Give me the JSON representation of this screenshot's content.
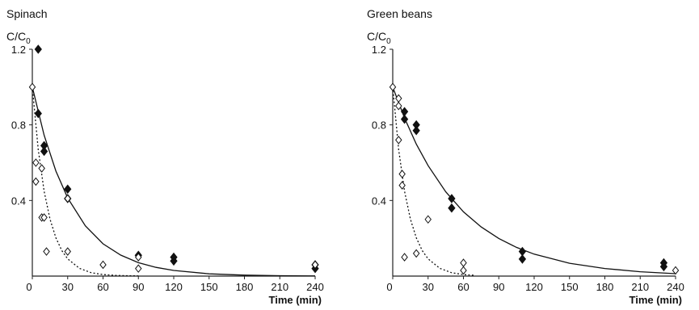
{
  "chart_data": [
    {
      "type": "scatter",
      "title": "Spinach",
      "ylabel": "C/C",
      "ylabel_subscript": "0",
      "xlabel": "Time (min)",
      "xlim": [
        0,
        240
      ],
      "ylim": [
        0,
        1.2
      ],
      "x_ticks": [
        0,
        30,
        60,
        90,
        120,
        150,
        180,
        210,
        240
      ],
      "y_ticks": [
        0.4,
        0.8,
        1.2
      ],
      "grid": false,
      "legend": "none",
      "series": [
        {
          "marker": "filled-diamond",
          "color": "#111111",
          "points": [
            [
              5,
              1.2
            ],
            [
              5,
              0.86
            ],
            [
              10,
              0.69
            ],
            [
              10,
              0.66
            ],
            [
              30,
              0.46
            ],
            [
              30,
              0.41
            ],
            [
              90,
              0.11
            ],
            [
              120,
              0.1
            ],
            [
              120,
              0.08
            ],
            [
              240,
              0.06
            ],
            [
              240,
              0.04
            ]
          ]
        },
        {
          "marker": "open-diamond",
          "color": "#111111",
          "points": [
            [
              0,
              1.0
            ],
            [
              3,
              0.6
            ],
            [
              3,
              0.5
            ],
            [
              8,
              0.57
            ],
            [
              8,
              0.31
            ],
            [
              10,
              0.31
            ],
            [
              12,
              0.13
            ],
            [
              30,
              0.41
            ],
            [
              30,
              0.13
            ],
            [
              60,
              0.06
            ],
            [
              90,
              0.1
            ],
            [
              90,
              0.04
            ],
            [
              240,
              0.06
            ]
          ]
        },
        {
          "type": "line",
          "style": "solid",
          "color": "#111111",
          "x": [
            0,
            10,
            20,
            30,
            45,
            60,
            75,
            90,
            105,
            120,
            150,
            180,
            210,
            240
          ],
          "y": [
            1.0,
            0.745,
            0.555,
            0.413,
            0.266,
            0.171,
            0.111,
            0.071,
            0.046,
            0.03,
            0.012,
            0.005,
            0.002,
            0.001
          ]
        },
        {
          "type": "line",
          "style": "dotted",
          "color": "#111111",
          "x": [
            0,
            5,
            10,
            15,
            20,
            25,
            30,
            40,
            50,
            60,
            70,
            80,
            90
          ],
          "y": [
            1.0,
            0.67,
            0.449,
            0.301,
            0.202,
            0.135,
            0.091,
            0.041,
            0.018,
            0.008,
            0.004,
            0.002,
            0.001
          ]
        }
      ]
    },
    {
      "type": "scatter",
      "title": "Green beans",
      "ylabel": "C/C",
      "ylabel_subscript": "0",
      "xlabel": "Time (min)",
      "xlim": [
        0,
        240
      ],
      "ylim": [
        0,
        1.2
      ],
      "x_ticks": [
        0,
        30,
        60,
        90,
        120,
        150,
        180,
        210,
        240
      ],
      "y_ticks": [
        0.4,
        0.8,
        1.2
      ],
      "grid": false,
      "legend": "none",
      "series": [
        {
          "marker": "filled-diamond",
          "color": "#111111",
          "points": [
            [
              10,
              0.87
            ],
            [
              10,
              0.83
            ],
            [
              20,
              0.8
            ],
            [
              20,
              0.77
            ],
            [
              50,
              0.41
            ],
            [
              50,
              0.36
            ],
            [
              110,
              0.13
            ],
            [
              110,
              0.09
            ],
            [
              230,
              0.07
            ],
            [
              230,
              0.05
            ]
          ]
        },
        {
          "marker": "open-diamond",
          "color": "#111111",
          "points": [
            [
              0,
              1.0
            ],
            [
              5,
              0.94
            ],
            [
              5,
              0.9
            ],
            [
              5,
              0.72
            ],
            [
              8,
              0.54
            ],
            [
              8,
              0.48
            ],
            [
              10,
              0.1
            ],
            [
              20,
              0.12
            ],
            [
              30,
              0.3
            ],
            [
              60,
              0.07
            ],
            [
              60,
              0.03
            ],
            [
              240,
              0.03
            ]
          ]
        },
        {
          "type": "line",
          "style": "solid",
          "color": "#111111",
          "x": [
            0,
            10,
            20,
            30,
            45,
            60,
            75,
            90,
            105,
            120,
            150,
            180,
            210,
            240
          ],
          "y": [
            1.0,
            0.836,
            0.698,
            0.584,
            0.446,
            0.34,
            0.26,
            0.199,
            0.152,
            0.116,
            0.068,
            0.04,
            0.023,
            0.013
          ]
        },
        {
          "type": "line",
          "style": "dotted",
          "color": "#111111",
          "x": [
            0,
            5,
            10,
            15,
            20,
            25,
            30,
            40,
            50,
            60,
            70
          ],
          "y": [
            1.0,
            0.67,
            0.449,
            0.301,
            0.202,
            0.135,
            0.091,
            0.041,
            0.018,
            0.008,
            0.004
          ]
        }
      ]
    }
  ]
}
